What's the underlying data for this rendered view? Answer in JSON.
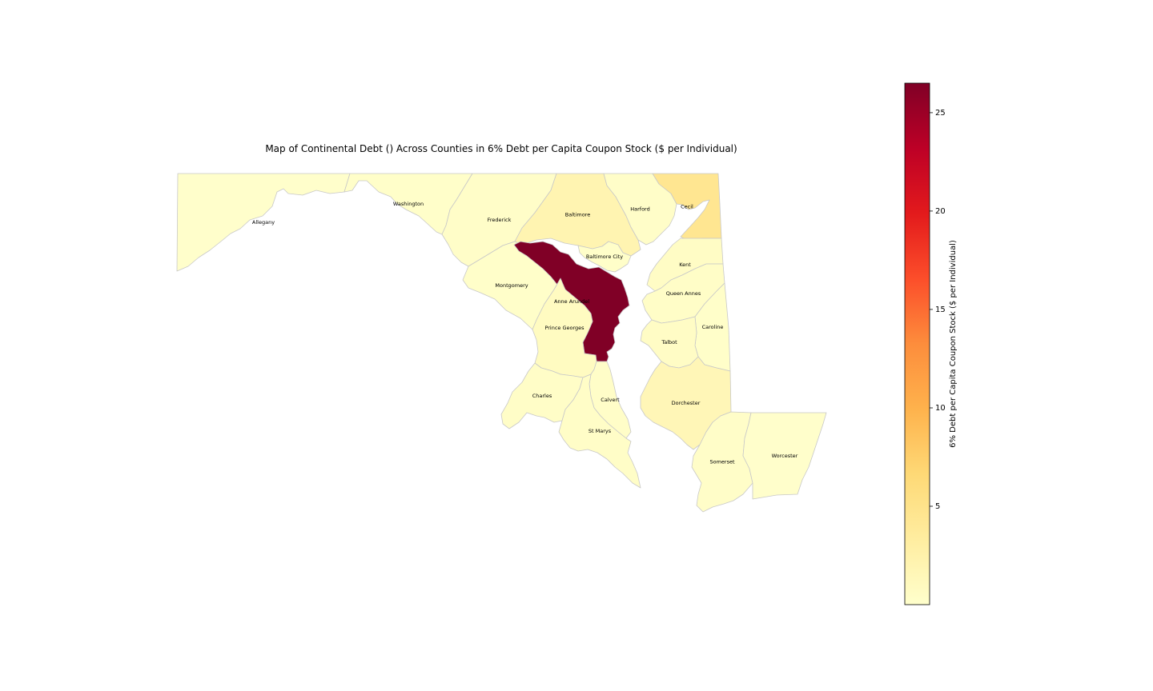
{
  "chart_data": {
    "type": "choropleth",
    "title": "Map of Continental Debt () Across Counties in 6% Debt per Capita Coupon Stock ($ per Individual)",
    "colorbar": {
      "label": "6% Debt per Capita Coupon Stock ($ per Individual)",
      "min": 0,
      "max": 26.5,
      "ticks": [
        5,
        10,
        15,
        20,
        25
      ],
      "tick_labels": [
        "5",
        "10",
        "15",
        "20",
        "25"
      ],
      "colormap": "YlOrRd",
      "stops": [
        "#ffffcc",
        "#ffeda0",
        "#fed976",
        "#feb24c",
        "#fd8d3c",
        "#fc4e2a",
        "#e31a1c",
        "#bd0026",
        "#800026"
      ]
    },
    "regions": [
      {
        "name": "Allegany",
        "value": 0.1
      },
      {
        "name": "Washington",
        "value": 0.2
      },
      {
        "name": "Frederick",
        "value": 0.3
      },
      {
        "name": "Baltimore",
        "value": 2.0
      },
      {
        "name": "Harford",
        "value": 0.3
      },
      {
        "name": "Cecil",
        "value": 4.5
      },
      {
        "name": "Baltimore City",
        "value": 0.2
      },
      {
        "name": "Montgomery",
        "value": 0.2
      },
      {
        "name": "Anne Arundel",
        "value": 26.5
      },
      {
        "name": "Prince Georges",
        "value": 0.8
      },
      {
        "name": "Kent",
        "value": 0.5
      },
      {
        "name": "Queen Annes",
        "value": 0.4
      },
      {
        "name": "Caroline",
        "value": 0.2
      },
      {
        "name": "Talbot",
        "value": 0.5
      },
      {
        "name": "Calvert",
        "value": 0.3
      },
      {
        "name": "Charles",
        "value": 0.4
      },
      {
        "name": "St Marys",
        "value": 0.4
      },
      {
        "name": "Dorchester",
        "value": 1.6
      },
      {
        "name": "Somerset",
        "value": 0.3
      },
      {
        "name": "Worcester",
        "value": 0.1
      }
    ]
  }
}
